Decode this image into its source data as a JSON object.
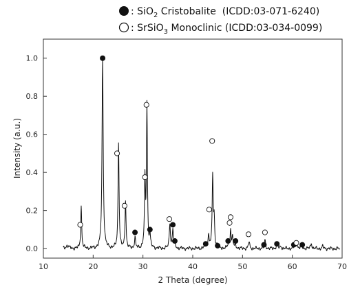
{
  "chart_data": {
    "type": "line",
    "xlabel": "2 Theta (degree)",
    "ylabel": "Intensity (a.u.)",
    "xlim": [
      10,
      70
    ],
    "ylim": [
      -0.05,
      1.1
    ],
    "x_ticks": [
      10,
      20,
      30,
      40,
      50,
      60,
      70
    ],
    "y_ticks": [
      "0.0",
      "0.2",
      "0.4",
      "0.6",
      "0.8",
      "1.0"
    ],
    "grid": false,
    "legend_position": "top",
    "legend": [
      {
        "marker": "filled-circle",
        "formula": "SiO",
        "sub": "2",
        "rest": " Cristobalite  (ICDD:03-071-6240)"
      },
      {
        "marker": "open-circle",
        "formula": "SrSiO",
        "sub": "3",
        "rest": " Monoclinic (ICDD:03-034-0099)"
      }
    ],
    "peaks": [
      {
        "x": 14.8,
        "y": 0.015,
        "w": 0.35
      },
      {
        "x": 17.6,
        "y": 0.22,
        "w": 0.12
      },
      {
        "x": 21.9,
        "y": 1.0,
        "w": 0.14
      },
      {
        "x": 25.1,
        "y": 0.56,
        "w": 0.12
      },
      {
        "x": 26.5,
        "y": 0.25,
        "w": 0.12
      },
      {
        "x": 28.4,
        "y": 0.06,
        "w": 0.12
      },
      {
        "x": 30.4,
        "y": 0.35,
        "w": 0.12
      },
      {
        "x": 30.8,
        "y": 0.75,
        "w": 0.11
      },
      {
        "x": 31.4,
        "y": 0.07,
        "w": 0.12
      },
      {
        "x": 35.4,
        "y": 0.13,
        "w": 0.14
      },
      {
        "x": 36.0,
        "y": 0.1,
        "w": 0.12
      },
      {
        "x": 36.4,
        "y": 0.025,
        "w": 0.15
      },
      {
        "x": 42.6,
        "y": 0.015,
        "w": 0.2
      },
      {
        "x": 43.2,
        "y": 0.07,
        "w": 0.14
      },
      {
        "x": 44.0,
        "y": 0.38,
        "w": 0.12
      },
      {
        "x": 44.3,
        "y": 0.15,
        "w": 0.12
      },
      {
        "x": 45.0,
        "y": 0.015,
        "w": 0.2
      },
      {
        "x": 47.2,
        "y": 0.03,
        "w": 0.14
      },
      {
        "x": 47.6,
        "y": 0.1,
        "w": 0.12
      },
      {
        "x": 48.0,
        "y": 0.06,
        "w": 0.12
      },
      {
        "x": 48.6,
        "y": 0.02,
        "w": 0.15
      },
      {
        "x": 51.3,
        "y": 0.035,
        "w": 0.14
      },
      {
        "x": 54.5,
        "y": 0.045,
        "w": 0.14
      },
      {
        "x": 56.9,
        "y": 0.025,
        "w": 0.15
      },
      {
        "x": 57.7,
        "y": 0.012,
        "w": 0.15
      },
      {
        "x": 60.4,
        "y": 0.015,
        "w": 0.15
      },
      {
        "x": 60.9,
        "y": 0.03,
        "w": 0.14
      },
      {
        "x": 61.9,
        "y": 0.02,
        "w": 0.15
      },
      {
        "x": 63.8,
        "y": 0.03,
        "w": 0.14
      },
      {
        "x": 66.1,
        "y": 0.012,
        "w": 0.15
      }
    ],
    "markers_SiO2": [
      {
        "x": 21.9,
        "y": 1.0
      },
      {
        "x": 28.4,
        "y": 0.085
      },
      {
        "x": 31.4,
        "y": 0.1
      },
      {
        "x": 36.0,
        "y": 0.125
      },
      {
        "x": 36.4,
        "y": 0.04
      },
      {
        "x": 42.6,
        "y": 0.025
      },
      {
        "x": 45.0,
        "y": 0.015
      },
      {
        "x": 47.1,
        "y": 0.04
      },
      {
        "x": 48.6,
        "y": 0.04
      },
      {
        "x": 54.3,
        "y": 0.02
      },
      {
        "x": 56.9,
        "y": 0.025
      },
      {
        "x": 60.3,
        "y": 0.02
      },
      {
        "x": 62.0,
        "y": 0.02
      }
    ],
    "markers_SrSiO3": [
      {
        "x": 17.4,
        "y": 0.125
      },
      {
        "x": 24.8,
        "y": 0.5
      },
      {
        "x": 26.3,
        "y": 0.225
      },
      {
        "x": 30.4,
        "y": 0.375
      },
      {
        "x": 30.7,
        "y": 0.755
      },
      {
        "x": 35.3,
        "y": 0.155
      },
      {
        "x": 43.3,
        "y": 0.205
      },
      {
        "x": 43.9,
        "y": 0.565
      },
      {
        "x": 47.4,
        "y": 0.135
      },
      {
        "x": 47.6,
        "y": 0.165
      },
      {
        "x": 51.2,
        "y": 0.075
      },
      {
        "x": 54.5,
        "y": 0.085
      },
      {
        "x": 60.8,
        "y": 0.03
      }
    ]
  }
}
